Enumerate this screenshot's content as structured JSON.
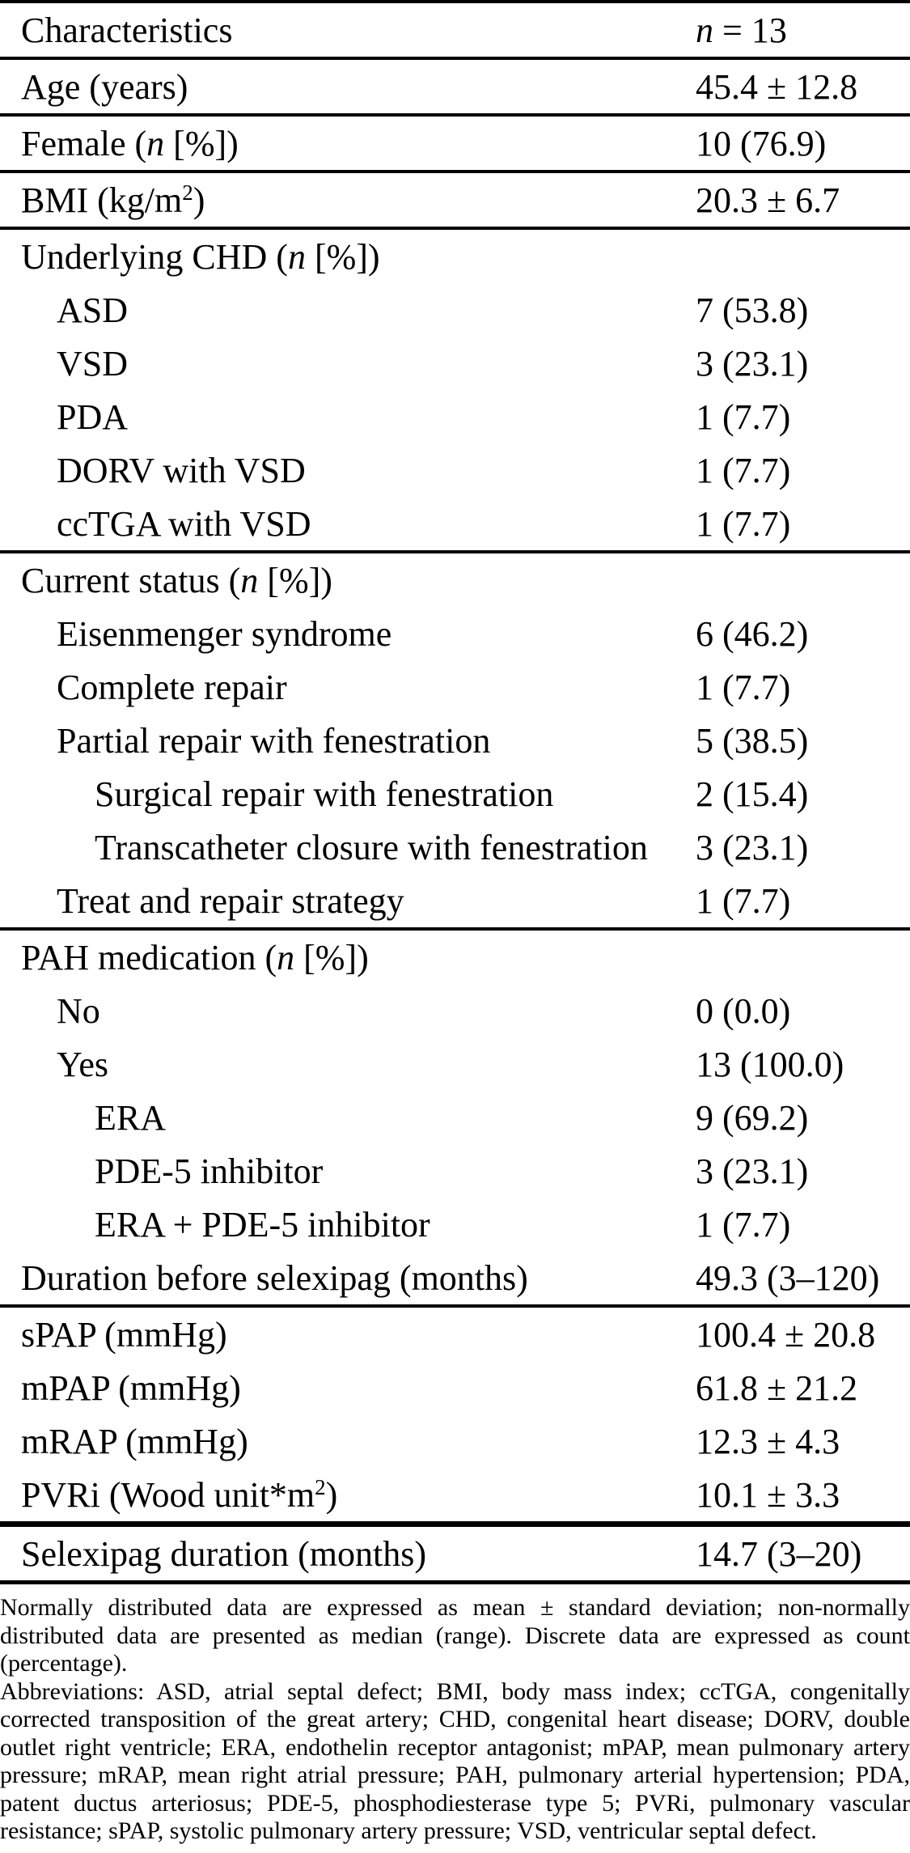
{
  "page": {
    "background_color": "#ffffff",
    "text_color": "#000000"
  },
  "table": {
    "header": {
      "label": "Characteristics",
      "value_parts": [
        {
          "t": "n",
          "style": "italic"
        },
        {
          "t": " = 13"
        }
      ]
    },
    "rows": [
      {
        "label": "Age (years)",
        "value": "45.4 ± 12.8",
        "indent": 0,
        "rule_after": "normal"
      },
      {
        "label_parts": [
          {
            "t": "Female ("
          },
          {
            "t": "n",
            "style": "italic"
          },
          {
            "t": " [%])"
          }
        ],
        "value": "10 (76.9)",
        "indent": 0,
        "rule_after": "normal"
      },
      {
        "label_parts": [
          {
            "t": "BMI (kg/m"
          },
          {
            "t": "2",
            "style": "sup"
          },
          {
            "t": ")"
          }
        ],
        "value": "20.3 ± 6.7",
        "indent": 0,
        "rule_after": "normal"
      },
      {
        "label_parts": [
          {
            "t": "Underlying CHD ("
          },
          {
            "t": "n",
            "style": "italic"
          },
          {
            "t": " [%])"
          }
        ],
        "value": "",
        "indent": 0
      },
      {
        "label": "ASD",
        "value": "7 (53.8)",
        "indent": 1
      },
      {
        "label": "VSD",
        "value": "3 (23.1)",
        "indent": 1
      },
      {
        "label": "PDA",
        "value": "1 (7.7)",
        "indent": 1
      },
      {
        "label": "DORV with VSD",
        "value": "1 (7.7)",
        "indent": 1
      },
      {
        "label": "ccTGA with VSD",
        "value": "1 (7.7)",
        "indent": 1,
        "rule_after": "normal"
      },
      {
        "label_parts": [
          {
            "t": "Current status ("
          },
          {
            "t": "n",
            "style": "italic"
          },
          {
            "t": " [%])"
          }
        ],
        "value": "",
        "indent": 0
      },
      {
        "label": "Eisenmenger syndrome",
        "value": "6 (46.2)",
        "indent": 1
      },
      {
        "label": "Complete repair",
        "value": "1 (7.7)",
        "indent": 1
      },
      {
        "label": "Partial repair with fenestration",
        "value": "5 (38.5)",
        "indent": 1
      },
      {
        "label": "Surgical repair with fenestration",
        "value": "2 (15.4)",
        "indent": 2
      },
      {
        "label": "Transcatheter closure with fenestration",
        "value": "3 (23.1)",
        "indent": 2
      },
      {
        "label": "Treat and repair strategy",
        "value": "1 (7.7)",
        "indent": 1,
        "rule_after": "normal"
      },
      {
        "label_parts": [
          {
            "t": "PAH medication ("
          },
          {
            "t": "n",
            "style": "italic"
          },
          {
            "t": " [%])"
          }
        ],
        "value": "",
        "indent": 0
      },
      {
        "label": "No",
        "value": "0 (0.0)",
        "indent": 1
      },
      {
        "label": "Yes",
        "value": "13 (100.0)",
        "indent": 1
      },
      {
        "label": "ERA",
        "value": "9 (69.2)",
        "indent": 2
      },
      {
        "label": "PDE-5 inhibitor",
        "value": "3 (23.1)",
        "indent": 2
      },
      {
        "label": "ERA + PDE-5 inhibitor",
        "value": "1 (7.7)",
        "indent": 2
      },
      {
        "label": "Duration before selexipag (months)",
        "value": "49.3 (3–120)",
        "indent": 0,
        "rule_after": "normal"
      },
      {
        "label": "sPAP (mmHg)",
        "value": "100.4 ± 20.8",
        "indent": 0
      },
      {
        "label": "mPAP (mmHg)",
        "value": "61.8 ± 21.2",
        "indent": 0
      },
      {
        "label": "mRAP (mmHg)",
        "value": "12.3 ± 4.3",
        "indent": 0
      },
      {
        "label_parts": [
          {
            "t": "PVRi (Wood unit*m"
          },
          {
            "t": "2",
            "style": "sup"
          },
          {
            "t": ")"
          }
        ],
        "value": "10.1 ± 3.3",
        "indent": 0,
        "rule_after": "thick"
      },
      {
        "label": "Selexipag duration (months)",
        "value": "14.7 (3–20)",
        "indent": 0,
        "rule_after": "bottom"
      }
    ]
  },
  "footnotes": {
    "statistics_note": "Normally distributed data are expressed as mean ± standard deviation; non-normally distributed data are presented as median (range). Discrete data are expressed as count (percentage).",
    "abbreviations_note": "Abbreviations: ASD, atrial septal defect; BMI, body mass index; ccTGA, congenitally corrected transposition of the great artery; CHD, congenital heart disease; DORV, double outlet right ventricle; ERA, endothelin receptor antagonist; mPAP, mean pulmonary artery pressure; mRAP, mean right atrial pressure; PAH, pulmonary arterial hypertension; PDA, patent ductus arteriosus; PDE-5, phosphodiesterase type 5; PVRi, pulmonary vascular resistance; sPAP, systolic pulmonary artery pressure; VSD, ventricular septal defect."
  }
}
